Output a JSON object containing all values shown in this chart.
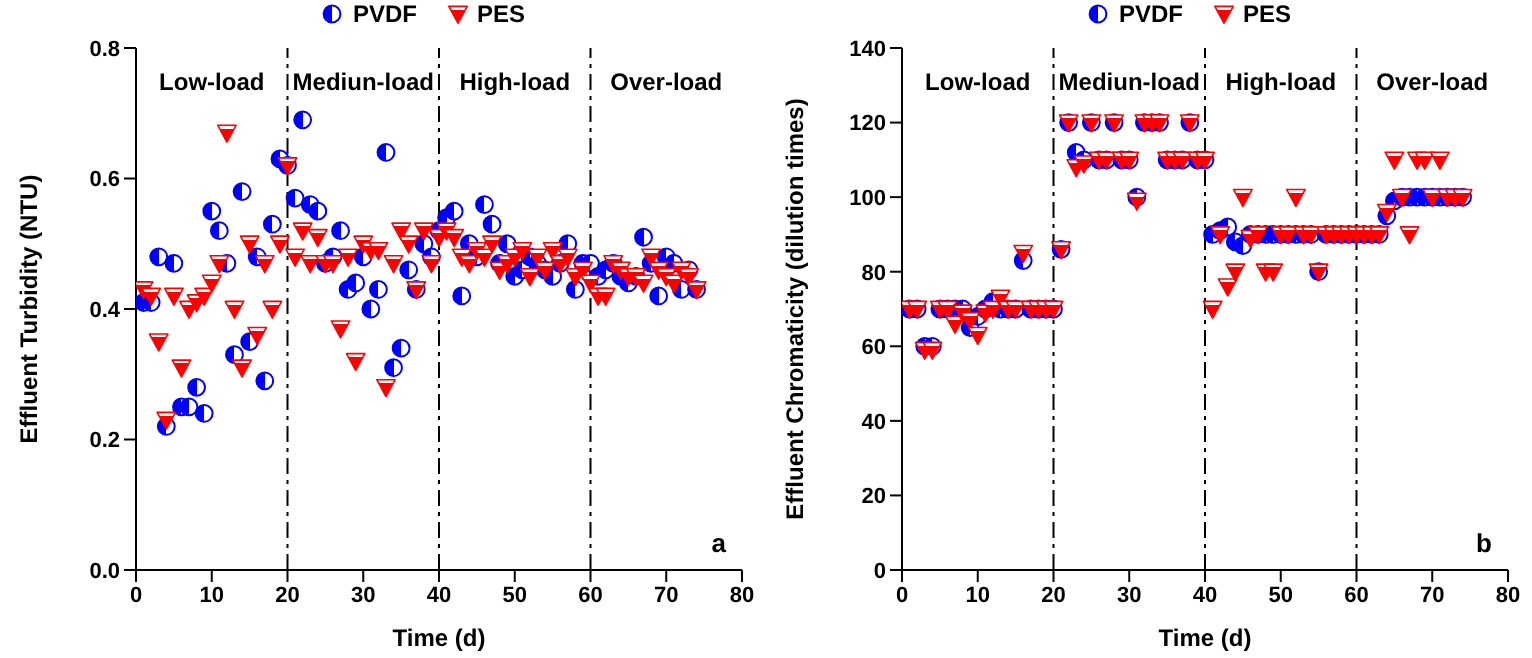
{
  "chart_data": [
    {
      "type": "scatter",
      "xlabel": "Time (d)",
      "ylabel": "Effluent Turbidity  (NTU)",
      "xlim": [
        0,
        80
      ],
      "xticks": [
        0,
        10,
        20,
        30,
        40,
        50,
        60,
        70,
        80
      ],
      "ylim": [
        0,
        0.8
      ],
      "yticks": [
        {
          "value": 0,
          "label": "0.0"
        },
        {
          "value": 0.2,
          "label": "0.2"
        },
        {
          "value": 0.4,
          "label": "0.4"
        },
        {
          "value": 0.6,
          "label": "0.6"
        },
        {
          "value": 0.8,
          "label": "0.8"
        }
      ],
      "grid": false,
      "legend": "top",
      "ref_lines": [
        {
          "axis": "x",
          "value": 20,
          "label": null,
          "line_style": "dashed"
        },
        {
          "axis": "x",
          "value": 40,
          "label": null,
          "line_style": "dashed"
        },
        {
          "axis": "x",
          "value": 60,
          "label": null,
          "line_style": "dashed"
        }
      ],
      "annotations": [
        "Low-load",
        "Mediun-load",
        "High-load",
        "Over-load",
        "a"
      ],
      "x": [
        1,
        2,
        3,
        4,
        5,
        6,
        7,
        8,
        9,
        10,
        11,
        12,
        13,
        14,
        15,
        16,
        17,
        18,
        19,
        20,
        21,
        22,
        23,
        24,
        25,
        26,
        27,
        28,
        29,
        30,
        31,
        32,
        33,
        34,
        35,
        36,
        37,
        38,
        39,
        40,
        41,
        42,
        43,
        44,
        45,
        46,
        47,
        48,
        49,
        50,
        51,
        52,
        53,
        54,
        55,
        56,
        57,
        58,
        59,
        60,
        61,
        62,
        63,
        64,
        65,
        66,
        67,
        68,
        69,
        70,
        71,
        72,
        73,
        74
      ],
      "series": [
        {
          "name": "PVDF",
          "color": "#0000ff",
          "marker": "circle",
          "values": [
            0.41,
            0.41,
            0.48,
            0.22,
            0.47,
            0.25,
            0.25,
            0.28,
            0.24,
            0.55,
            0.52,
            0.47,
            0.33,
            0.58,
            0.35,
            0.48,
            0.29,
            0.53,
            0.63,
            0.62,
            0.57,
            0.69,
            0.56,
            0.55,
            0.47,
            0.48,
            0.52,
            0.43,
            0.44,
            0.48,
            0.4,
            0.43,
            0.64,
            0.31,
            0.34,
            0.46,
            0.43,
            0.5,
            0.48,
            0.52,
            0.54,
            0.55,
            0.42,
            0.5,
            0.48,
            0.56,
            0.53,
            0.47,
            0.5,
            0.45,
            0.46,
            0.48,
            0.47,
            0.46,
            0.45,
            0.47,
            0.5,
            0.43,
            0.47,
            0.47,
            0.45,
            0.46,
            0.47,
            0.45,
            0.44,
            0.45,
            0.51,
            0.47,
            0.42,
            0.48,
            0.47,
            0.43,
            0.46,
            0.43
          ]
        },
        {
          "name": "PES",
          "color": "#ff0000",
          "marker": "triangle",
          "values": [
            0.43,
            0.42,
            0.35,
            0.23,
            0.42,
            0.31,
            0.4,
            0.41,
            0.42,
            0.44,
            0.47,
            0.67,
            0.4,
            0.31,
            0.5,
            0.36,
            0.47,
            0.4,
            0.5,
            0.62,
            0.48,
            0.52,
            0.47,
            0.51,
            0.47,
            0.47,
            0.37,
            0.48,
            0.32,
            0.5,
            0.49,
            0.49,
            0.28,
            0.47,
            0.52,
            0.5,
            0.43,
            0.52,
            0.47,
            0.51,
            0.52,
            0.51,
            0.48,
            0.47,
            0.49,
            0.48,
            0.5,
            0.46,
            0.47,
            0.48,
            0.49,
            0.45,
            0.48,
            0.46,
            0.49,
            0.47,
            0.48,
            0.45,
            0.46,
            0.44,
            0.42,
            0.42,
            0.47,
            0.46,
            0.45,
            0.45,
            0.44,
            0.48,
            0.46,
            0.45,
            0.44,
            0.46,
            0.45,
            0.43
          ]
        }
      ]
    },
    {
      "type": "scatter",
      "xlabel": "Time (d)",
      "ylabel": "Effluent Chromaticity  (dilution times)",
      "xlim": [
        0,
        80
      ],
      "xticks": [
        0,
        10,
        20,
        30,
        40,
        50,
        60,
        70,
        80
      ],
      "ylim": [
        0,
        140
      ],
      "yticks": [
        0,
        20,
        40,
        60,
        80,
        100,
        120,
        140
      ],
      "grid": false,
      "legend": "top",
      "ref_lines": [
        {
          "axis": "x",
          "value": 20,
          "label": null,
          "line_style": "dashed"
        },
        {
          "axis": "x",
          "value": 40,
          "label": null,
          "line_style": "dashed"
        },
        {
          "axis": "x",
          "value": 60,
          "label": null,
          "line_style": "dashed"
        }
      ],
      "annotations": [
        "Low-load",
        "Mediun-load",
        "High-load",
        "Over-load",
        "b"
      ],
      "x": [
        1,
        2,
        3,
        4,
        5,
        6,
        7,
        8,
        9,
        10,
        11,
        12,
        13,
        14,
        15,
        16,
        17,
        18,
        19,
        20,
        21,
        22,
        23,
        24,
        25,
        26,
        27,
        28,
        29,
        30,
        31,
        32,
        33,
        34,
        35,
        36,
        37,
        38,
        39,
        40,
        41,
        42,
        43,
        44,
        45,
        46,
        47,
        48,
        49,
        50,
        51,
        52,
        53,
        54,
        55,
        56,
        57,
        58,
        59,
        60,
        61,
        62,
        63,
        64,
        65,
        66,
        67,
        68,
        69,
        70,
        71,
        72,
        73,
        74
      ],
      "series": [
        {
          "name": "PVDF",
          "color": "#0000ff",
          "marker": "circle",
          "values": [
            70,
            70,
            60,
            60,
            70,
            70,
            70,
            70,
            65,
            68,
            70,
            72,
            70,
            70,
            70,
            83,
            70,
            70,
            70,
            70,
            86,
            120,
            112,
            110,
            120,
            110,
            110,
            120,
            110,
            110,
            100,
            120,
            120,
            120,
            110,
            110,
            110,
            120,
            110,
            110,
            90,
            91,
            92,
            88,
            87,
            90,
            90,
            90,
            90,
            90,
            90,
            90,
            90,
            90,
            80,
            90,
            90,
            90,
            90,
            90,
            90,
            90,
            90,
            95,
            99,
            100,
            100,
            100,
            100,
            100,
            100,
            100,
            100,
            100
          ]
        },
        {
          "name": "PES",
          "color": "#ff0000",
          "marker": "triangle",
          "values": [
            70,
            70,
            59,
            59,
            70,
            70,
            66,
            69,
            67,
            63,
            69,
            70,
            73,
            70,
            70,
            85,
            70,
            70,
            70,
            70,
            86,
            120,
            108,
            109,
            120,
            110,
            110,
            120,
            110,
            110,
            99,
            120,
            120,
            120,
            110,
            110,
            110,
            120,
            110,
            110,
            70,
            90,
            76,
            80,
            100,
            89,
            90,
            80,
            80,
            90,
            90,
            100,
            90,
            90,
            80,
            90,
            90,
            90,
            90,
            90,
            90,
            90,
            90,
            96,
            110,
            100,
            90,
            110,
            110,
            100,
            110,
            100,
            100,
            100
          ]
        }
      ]
    }
  ]
}
